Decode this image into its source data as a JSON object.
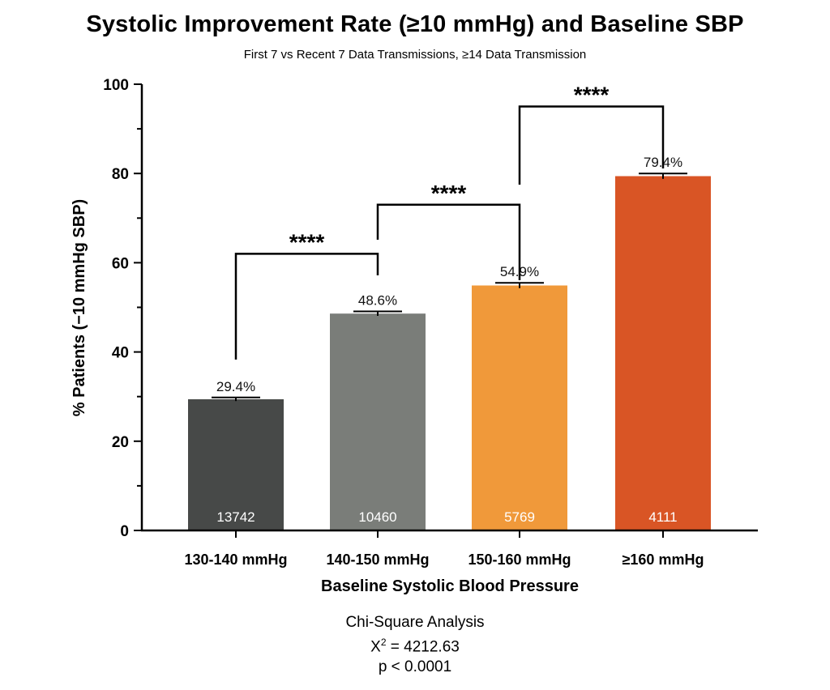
{
  "title": "Systolic Improvement Rate (≥10 mmHg) and Baseline SBP",
  "subtitle": "First 7 vs Recent 7 Data Transmissions, ≥14 Data Transmission",
  "chart_data": {
    "type": "bar",
    "title": "Systolic Improvement Rate (≥10 mmHg) and Baseline SBP",
    "subtitle": "First 7 vs Recent 7 Data Transmissions, ≥14 Data Transmission",
    "xlabel": "Baseline Systolic Blood Pressure",
    "ylabel": "% Patients (−10 mmHg SBP)",
    "categories": [
      "130-140 mmHg",
      "140-150 mmHg",
      "150-160 mmHg",
      "≥160 mmHg"
    ],
    "values": [
      29.4,
      48.6,
      54.9,
      79.4
    ],
    "value_labels": [
      "29.4%",
      "48.6%",
      "54.9%",
      "79.4%"
    ],
    "counts": [
      "13742",
      "10460",
      "5769",
      "4111"
    ],
    "bar_colors": [
      "#474948",
      "#7a7d79",
      "#f0993a",
      "#d95525"
    ],
    "error_bars": [
      0.4,
      0.5,
      0.6,
      0.6
    ],
    "ylim": [
      0,
      100
    ],
    "yticks": [
      "0",
      "20",
      "40",
      "60",
      "80",
      "100"
    ],
    "significance": [
      {
        "from": 0,
        "to": 1,
        "label": "****",
        "level": 62
      },
      {
        "from": 1,
        "to": 2,
        "label": "****",
        "level": 73
      },
      {
        "from": 2,
        "to": 3,
        "label": "****",
        "level": 95
      }
    ],
    "grid": false,
    "legend": "none"
  },
  "stats": {
    "line1": "Chi-Square Analysis",
    "chi_symbol": "X",
    "chi_sup": "2",
    "chi_value": " = 4212.63",
    "line3": "p < 0.0001"
  }
}
